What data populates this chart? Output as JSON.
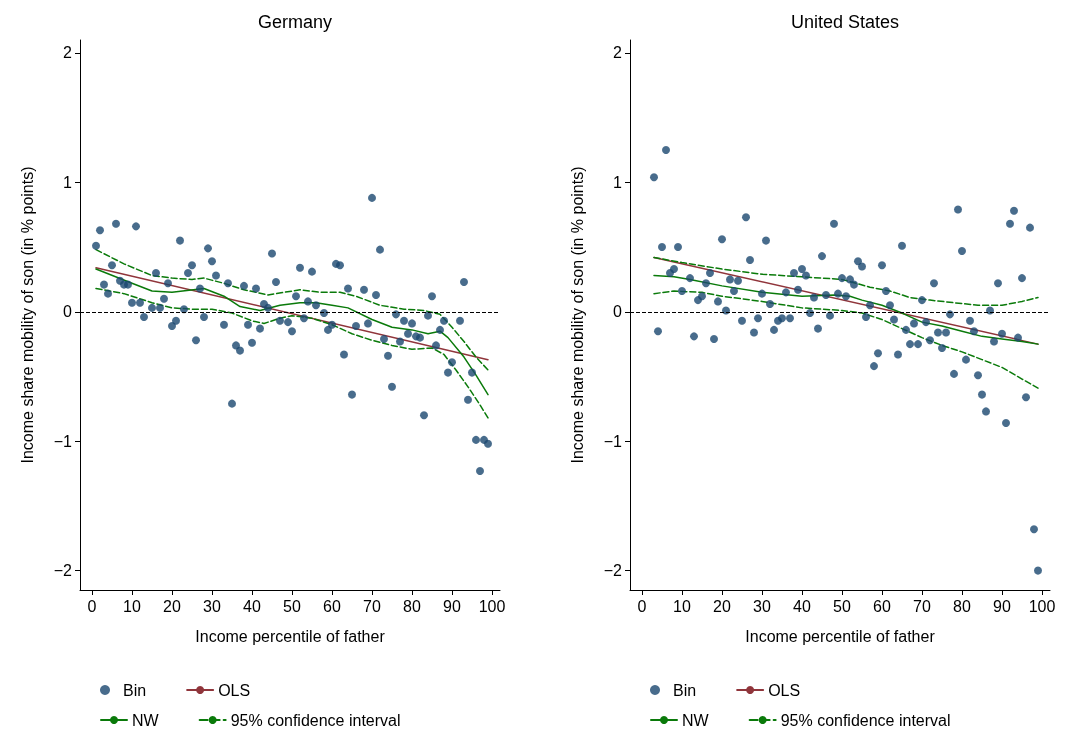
{
  "chart_data": [
    {
      "type": "scatter",
      "title": "Germany",
      "xlabel": "Income percentile of father",
      "ylabel": "Income share mobility of son (in % points)",
      "xlim": [
        -3,
        102
      ],
      "ylim": [
        -2.15,
        2.1
      ],
      "xticks": [
        0,
        10,
        20,
        30,
        40,
        50,
        60,
        70,
        80,
        90,
        100
      ],
      "yticks": [
        -2,
        -1,
        0,
        1,
        2
      ],
      "grid": false,
      "legend": "bottom",
      "ref_lines": [
        {
          "axis": "y",
          "value": 0,
          "color": "#000000",
          "line_style": "dashed"
        }
      ],
      "series": [
        {
          "name": "Bin",
          "type": "scatter",
          "marker": "circle",
          "color": "#1a476f",
          "x": [
            1,
            2,
            3,
            4,
            5,
            6,
            7,
            8,
            9,
            10,
            11,
            12,
            13,
            15,
            16,
            17,
            18,
            19,
            20,
            21,
            22,
            23,
            24,
            25,
            26,
            27,
            28,
            29,
            30,
            31,
            33,
            34,
            35,
            36,
            37,
            38,
            39,
            40,
            41,
            42,
            43,
            44,
            45,
            46,
            47,
            49,
            50,
            51,
            52,
            53,
            54,
            55,
            56,
            58,
            59,
            60,
            61,
            62,
            63,
            64,
            65,
            66,
            68,
            69,
            70,
            71,
            72,
            73,
            74,
            75,
            76,
            77,
            78,
            79,
            80,
            81,
            82,
            83,
            84,
            85,
            86,
            87,
            88,
            89,
            90,
            92,
            93,
            94,
            95,
            96,
            97,
            98,
            99
          ],
          "values": [
            0.51,
            0.63,
            0.21,
            0.14,
            0.36,
            0.68,
            0.24,
            0.21,
            0.21,
            0.07,
            0.66,
            0.07,
            -0.04,
            0.03,
            0.3,
            0.03,
            0.1,
            0.22,
            -0.11,
            -0.07,
            0.55,
            0.02,
            0.3,
            0.36,
            -0.22,
            0.18,
            -0.04,
            0.49,
            0.39,
            0.28,
            -0.1,
            0.22,
            -0.71,
            -0.26,
            -0.3,
            0.2,
            -0.1,
            -0.24,
            0.18,
            -0.13,
            0.06,
            0.03,
            0.45,
            0.23,
            -0.07,
            -0.08,
            -0.15,
            0.12,
            0.34,
            -0.05,
            0.08,
            0.31,
            0.05,
            -0.01,
            -0.14,
            -0.1,
            0.37,
            0.36,
            -0.33,
            0.18,
            -0.64,
            -0.11,
            0.17,
            -0.09,
            0.88,
            0.13,
            0.48,
            -0.21,
            -0.34,
            -0.58,
            -0.02,
            -0.23,
            -0.07,
            -0.17,
            -0.09,
            -0.19,
            -0.2,
            -0.8,
            -0.03,
            0.12,
            -0.26,
            -0.14,
            -0.07,
            -0.47,
            -0.39,
            -0.07,
            0.23,
            -0.68,
            -0.47,
            -0.99,
            -1.23,
            -0.99,
            -1.02
          ]
        },
        {
          "name": "OLS",
          "type": "line",
          "marker": "none",
          "line_style": "solid",
          "color": "#90353b",
          "x": [
            1,
            99
          ],
          "values": [
            0.34,
            -0.37
          ]
        },
        {
          "name": "NW",
          "type": "line",
          "marker": "none",
          "line_style": "solid",
          "color": "#0a7a0a",
          "x": [
            1,
            10,
            15,
            20,
            28,
            33,
            37,
            42,
            47,
            52,
            56,
            60,
            64,
            70,
            75,
            80,
            84,
            87,
            89,
            93,
            96,
            99
          ],
          "values": [
            0.33,
            0.22,
            0.16,
            0.15,
            0.18,
            0.12,
            0.04,
            0.01,
            0.05,
            0.07,
            0.07,
            0.05,
            0.03,
            -0.06,
            -0.12,
            -0.14,
            -0.17,
            -0.15,
            -0.2,
            -0.35,
            -0.49,
            -0.64
          ]
        },
        {
          "name": "95% confidence interval",
          "type": "line",
          "marker": "none",
          "line_style": "dashed",
          "color": "#0a7a0a",
          "x": [
            1,
            8,
            15,
            20,
            25,
            28,
            33,
            38,
            44,
            48,
            52,
            57,
            62,
            66,
            72,
            78,
            83,
            87,
            90,
            93,
            96,
            99
          ],
          "values": [
            0.48,
            0.37,
            0.28,
            0.26,
            0.25,
            0.26,
            0.22,
            0.17,
            0.13,
            0.15,
            0.17,
            0.15,
            0.15,
            0.12,
            0.05,
            0.02,
            0.01,
            -0.02,
            -0.12,
            -0.23,
            -0.35,
            -0.45
          ]
        },
        {
          "type": "line",
          "marker": "none",
          "line_style": "dashed",
          "color": "#0a7a0a",
          "x": [
            1,
            8,
            15,
            20,
            25,
            30,
            35,
            40,
            43,
            47,
            50,
            55,
            60,
            65,
            70,
            75,
            80,
            85,
            88,
            91,
            94,
            97,
            99
          ],
          "values": [
            0.18,
            0.14,
            0.07,
            0.03,
            0.02,
            0.02,
            -0.01,
            -0.07,
            -0.09,
            -0.05,
            -0.03,
            -0.05,
            -0.1,
            -0.17,
            -0.22,
            -0.26,
            -0.29,
            -0.28,
            -0.33,
            -0.45,
            -0.58,
            -0.72,
            -0.82
          ]
        }
      ]
    },
    {
      "type": "scatter",
      "title": "United States",
      "xlabel": "Income percentile of father",
      "ylabel": "Income share mobility of son (in % points)",
      "xlim": [
        -3,
        102
      ],
      "ylim": [
        -2.15,
        2.1
      ],
      "xticks": [
        0,
        10,
        20,
        30,
        40,
        50,
        60,
        70,
        80,
        90,
        100
      ],
      "yticks": [
        -2,
        -1,
        0,
        1,
        2
      ],
      "grid": false,
      "legend": "bottom",
      "ref_lines": [
        {
          "axis": "y",
          "value": 0,
          "color": "#000000",
          "line_style": "dashed"
        }
      ],
      "series": [
        {
          "name": "Bin",
          "type": "scatter",
          "marker": "circle",
          "color": "#1a476f",
          "x": [
            3,
            4,
            5,
            6,
            7,
            8,
            9,
            10,
            12,
            13,
            14,
            15,
            16,
            17,
            18,
            19,
            20,
            21,
            22,
            23,
            24,
            25,
            26,
            27,
            28,
            29,
            30,
            31,
            32,
            33,
            34,
            35,
            36,
            37,
            38,
            39,
            40,
            41,
            42,
            43,
            44,
            45,
            46,
            47,
            48,
            49,
            50,
            51,
            52,
            53,
            54,
            55,
            56,
            57,
            58,
            59,
            60,
            61,
            62,
            63,
            64,
            65,
            66,
            67,
            68,
            69,
            70,
            71,
            72,
            73,
            74,
            75,
            76,
            77,
            78,
            79,
            80,
            81,
            82,
            83,
            84,
            85,
            86,
            87,
            88,
            89,
            90,
            91,
            92,
            93,
            94,
            95,
            96,
            97,
            98,
            99
          ],
          "values": [
            1.04,
            -0.15,
            0.5,
            1.25,
            0.3,
            0.33,
            0.5,
            0.16,
            0.26,
            -0.19,
            0.09,
            0.12,
            0.22,
            0.3,
            -0.21,
            0.08,
            0.56,
            0.01,
            0.25,
            0.16,
            0.24,
            -0.07,
            0.73,
            0.4,
            -0.16,
            -0.05,
            0.14,
            0.55,
            0.06,
            -0.14,
            -0.07,
            -0.05,
            0.15,
            -0.05,
            0.3,
            0.17,
            0.33,
            0.28,
            -0.01,
            0.11,
            -0.13,
            0.43,
            0.13,
            -0.03,
            0.68,
            0.14,
            0.26,
            0.12,
            0.25,
            0.21,
            0.39,
            0.35,
            -0.04,
            0.05,
            -0.42,
            -0.32,
            0.36,
            0.16,
            0.05,
            -0.06,
            -0.33,
            0.51,
            -0.14,
            -0.25,
            -0.09,
            -0.25,
            0.09,
            -0.08,
            -0.22,
            0.22,
            -0.16,
            -0.28,
            -0.16,
            -0.02,
            -0.48,
            0.79,
            0.47,
            -0.37,
            -0.07,
            -0.15,
            -0.49,
            -0.64,
            -0.77,
            0.01,
            -0.23,
            0.22,
            -0.17,
            -0.86,
            0.68,
            0.78,
            -0.2,
            0.26,
            -0.66,
            0.65,
            -1.68,
            -2.0
          ]
        },
        {
          "name": "OLS",
          "type": "line",
          "marker": "none",
          "line_style": "solid",
          "color": "#90353b",
          "x": [
            3,
            99
          ],
          "values": [
            0.42,
            -0.25
          ]
        },
        {
          "name": "NW",
          "type": "line",
          "marker": "none",
          "line_style": "solid",
          "color": "#0a7a0a",
          "x": [
            3,
            8,
            12,
            20,
            30,
            40,
            48,
            52,
            55,
            60,
            65,
            70,
            75,
            80,
            85,
            90,
            95,
            99
          ],
          "values": [
            0.28,
            0.27,
            0.25,
            0.2,
            0.15,
            0.12,
            0.13,
            0.12,
            0.09,
            0.05,
            -0.01,
            -0.08,
            -0.11,
            -0.15,
            -0.19,
            -0.21,
            -0.23,
            -0.25
          ]
        },
        {
          "name": "95% confidence interval",
          "type": "line",
          "marker": "none",
          "line_style": "dashed",
          "color": "#0a7a0a",
          "x": [
            3,
            10,
            20,
            30,
            40,
            50,
            57,
            62,
            67,
            72,
            78,
            84,
            90,
            95,
            99
          ],
          "values": [
            0.42,
            0.38,
            0.33,
            0.29,
            0.27,
            0.25,
            0.19,
            0.16,
            0.11,
            0.09,
            0.07,
            0.05,
            0.05,
            0.08,
            0.11
          ]
        },
        {
          "type": "line",
          "marker": "none",
          "line_style": "dashed",
          "color": "#0a7a0a",
          "x": [
            3,
            8,
            15,
            20,
            30,
            40,
            50,
            55,
            60,
            65,
            70,
            75,
            80,
            85,
            90,
            95,
            99
          ],
          "values": [
            0.14,
            0.16,
            0.15,
            0.12,
            0.08,
            0.03,
            0.01,
            -0.01,
            -0.06,
            -0.13,
            -0.2,
            -0.26,
            -0.31,
            -0.37,
            -0.43,
            -0.52,
            -0.59
          ]
        }
      ]
    }
  ]
}
